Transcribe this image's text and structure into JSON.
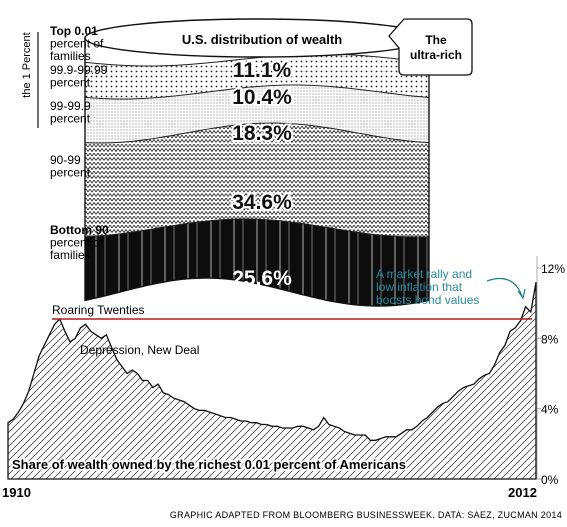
{
  "chart_data": [
    {
      "type": "stacked-bar",
      "title": "U.S. distribution of wealth",
      "callout": "The ultra-rich",
      "side_label": "the 1 Percent",
      "unit": "%",
      "layers": [
        {
          "label": "Top 0.01 percent of families",
          "label_lines": [
            "Top 0.01",
            "percent of",
            "families"
          ],
          "value": 11.1,
          "value_label": "11.1%",
          "pattern": "plain"
        },
        {
          "label": "99.9-99.99 percent",
          "label_lines": [
            "99.9-99.99",
            "percent"
          ],
          "value": 10.4,
          "value_label": "10.4%",
          "pattern": "dots"
        },
        {
          "label": "99-99.9 percent",
          "label_lines": [
            "99-99.9",
            "percent"
          ],
          "value": 18.3,
          "value_label": "18.3%",
          "pattern": "fine-dots"
        },
        {
          "label": "90-99 percent",
          "label_lines": [
            "90-99",
            "percent"
          ],
          "value": 34.6,
          "value_label": "34.6%",
          "pattern": "zigzag"
        },
        {
          "label": "Bottom 90 percent of families",
          "label_lines": [
            "Bottom 90",
            "percent of",
            "families"
          ],
          "value": 25.6,
          "value_label": "25.6%",
          "pattern": "black"
        }
      ]
    },
    {
      "type": "area",
      "title": "Share of wealth owned by the richest 0.01 percent of Americans",
      "xlim": [
        1910,
        2012
      ],
      "ylim": [
        0,
        12
      ],
      "x_tick_labels": [
        "1910",
        "2012"
      ],
      "y_ticks": [
        0,
        4,
        8,
        12
      ],
      "y_tick_labels": [
        "0%",
        "4%",
        "8%",
        "12%"
      ],
      "reference_line": {
        "label": "Roaring Twenties",
        "value": 9.1,
        "color": "#b71c1c"
      },
      "annotations": [
        {
          "text": "Depression, New Deal",
          "x": 1931
        },
        {
          "text": "A market rally and low inflation that boosts bond values",
          "lines": [
            "A market rally and",
            "low inflation that",
            "boosts bond values"
          ],
          "x": 2010,
          "color": "#2a8aa0"
        }
      ],
      "series": [
        {
          "x": [
            1910,
            1911,
            1912,
            1913,
            1914,
            1915,
            1916,
            1917,
            1918,
            1919,
            1920,
            1921,
            1922,
            1923,
            1924,
            1925,
            1926,
            1927,
            1928,
            1929,
            1930,
            1931,
            1932,
            1933,
            1934,
            1935,
            1936,
            1937,
            1938,
            1939,
            1940,
            1941,
            1942,
            1943,
            1944,
            1945,
            1946,
            1947,
            1948,
            1949,
            1950,
            1951,
            1952,
            1953,
            1954,
            1955,
            1956,
            1957,
            1958,
            1959,
            1960,
            1961,
            1962,
            1963,
            1964,
            1965,
            1966,
            1967,
            1968,
            1969,
            1970,
            1971,
            1972,
            1973,
            1974,
            1975,
            1976,
            1977,
            1978,
            1979,
            1980,
            1981,
            1982,
            1983,
            1984,
            1985,
            1986,
            1987,
            1988,
            1989,
            1990,
            1991,
            1992,
            1993,
            1994,
            1995,
            1996,
            1997,
            1998,
            1999,
            2000,
            2001,
            2002,
            2003,
            2004,
            2005,
            2006,
            2007,
            2008,
            2009,
            2010,
            2011,
            2012
          ],
          "y": [
            3.2,
            3.4,
            3.8,
            4.3,
            5.0,
            6.0,
            7.0,
            7.6,
            8.2,
            8.8,
            9.1,
            8.4,
            7.8,
            8.0,
            8.6,
            8.8,
            8.4,
            8.2,
            8.0,
            8.2,
            7.5,
            6.8,
            6.4,
            6.0,
            6.2,
            6.0,
            5.6,
            5.6,
            5.2,
            5.4,
            4.9,
            4.8,
            4.6,
            4.5,
            4.4,
            4.2,
            4.0,
            3.9,
            3.9,
            3.8,
            3.7,
            3.6,
            3.5,
            3.5,
            3.4,
            3.3,
            3.3,
            3.2,
            3.2,
            3.1,
            3.1,
            3.0,
            3.0,
            2.9,
            2.9,
            2.9,
            3.0,
            3.0,
            2.9,
            2.8,
            3.0,
            3.5,
            3.1,
            3.0,
            2.9,
            2.7,
            2.6,
            2.5,
            2.5,
            2.5,
            2.2,
            2.2,
            2.3,
            2.4,
            2.4,
            2.4,
            2.6,
            2.8,
            2.8,
            3.0,
            3.3,
            3.5,
            3.8,
            4.1,
            4.3,
            4.4,
            4.7,
            5.0,
            5.2,
            5.3,
            5.4,
            5.7,
            5.9,
            6.0,
            6.5,
            7.2,
            7.6,
            8.4,
            8.6,
            9.0,
            9.8,
            9.5,
            11.2
          ]
        }
      ]
    }
  ],
  "footer": {
    "x_start": "1910",
    "x_end": "2012",
    "credit": "GRAPHIC ADAPTED FROM BLOOMBERG BUSINESSWEEK. DATA: SAEZ, ZUCMAN 2014"
  }
}
